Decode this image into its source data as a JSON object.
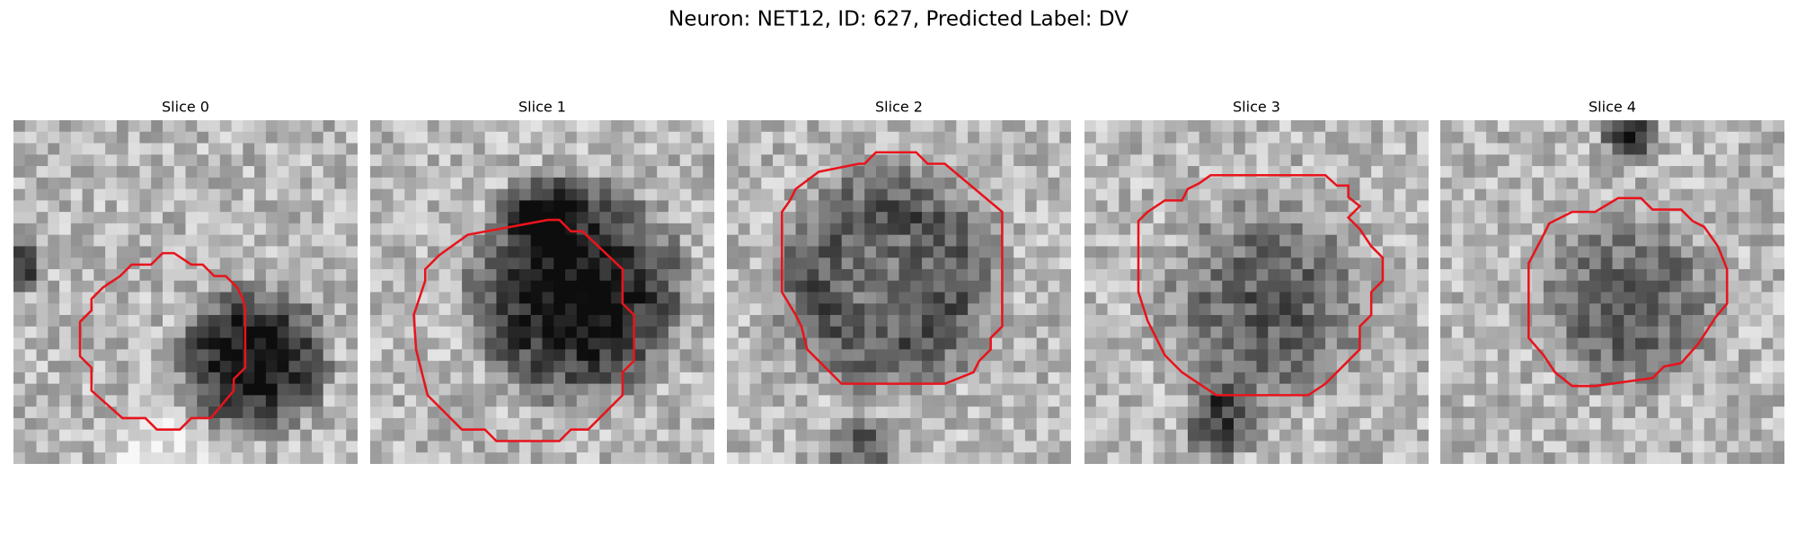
{
  "header": {
    "title": "Neuron: NET12, ID: 627, Predicted Label: DV"
  },
  "panels": [
    {
      "title": "Slice 0"
    },
    {
      "title": "Slice 1"
    },
    {
      "title": "Slice 2"
    },
    {
      "title": "Slice 3"
    },
    {
      "title": "Slice 4"
    }
  ]
}
